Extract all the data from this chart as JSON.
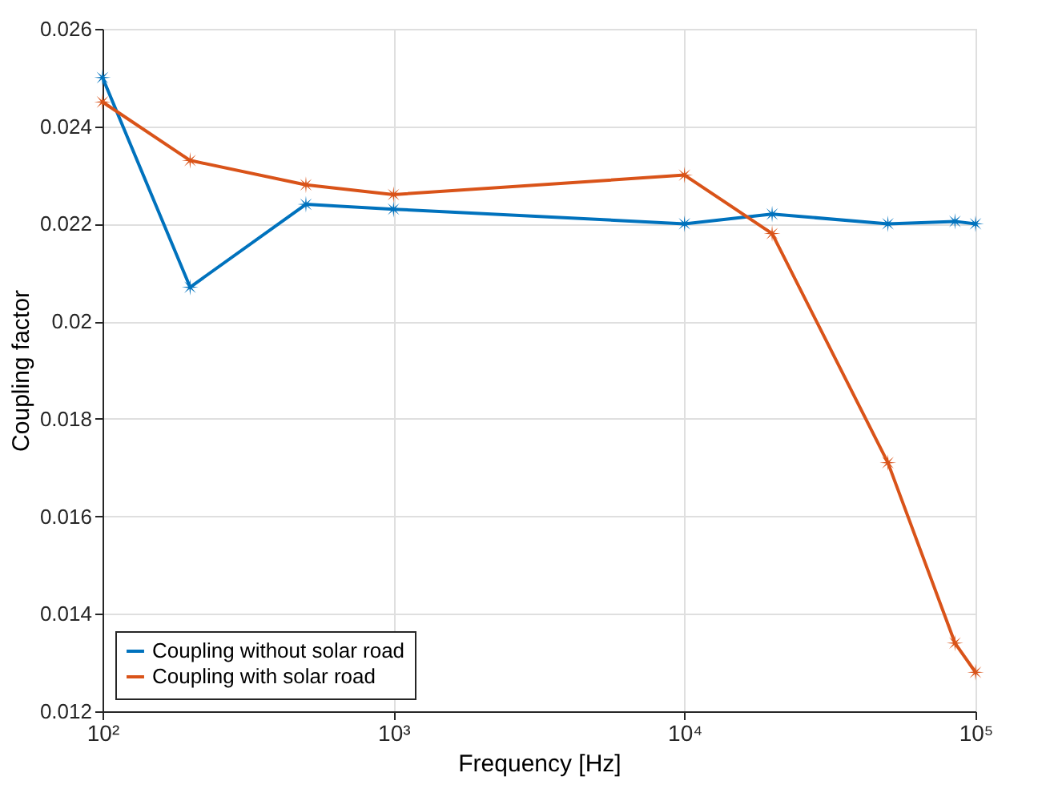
{
  "chart_data": {
    "type": "line",
    "xlabel": "Frequency [Hz]",
    "ylabel": "Coupling factor",
    "log": "x",
    "xlim": [
      100,
      100000
    ],
    "xticks": [
      {
        "value": 100,
        "label": "10²"
      },
      {
        "value": 1000,
        "label": "10³"
      },
      {
        "value": 10000,
        "label": "10⁴"
      },
      {
        "value": 100000,
        "label": "10⁵"
      }
    ],
    "ylim": [
      0.012,
      0.026
    ],
    "yticks": [
      0.012,
      0.014,
      0.016,
      0.018,
      0.02,
      0.022,
      0.024,
      0.026
    ],
    "x": [
      100,
      200,
      500,
      1000,
      10000,
      20000,
      50000,
      85000,
      100000
    ],
    "series": [
      {
        "name": "Coupling without solar road",
        "color": "#0072bd",
        "values": [
          0.025,
          0.0207,
          0.0224,
          0.0223,
          0.022,
          0.0222,
          0.022,
          0.02205,
          0.022
        ]
      },
      {
        "name": "Coupling with solar road",
        "color": "#d95319",
        "values": [
          0.0245,
          0.0233,
          0.0228,
          0.0226,
          0.023,
          0.0218,
          0.0171,
          0.0134,
          0.0128
        ]
      }
    ],
    "grid": true,
    "legend": "bottom left",
    "marker": "star",
    "line_style": "solid"
  }
}
